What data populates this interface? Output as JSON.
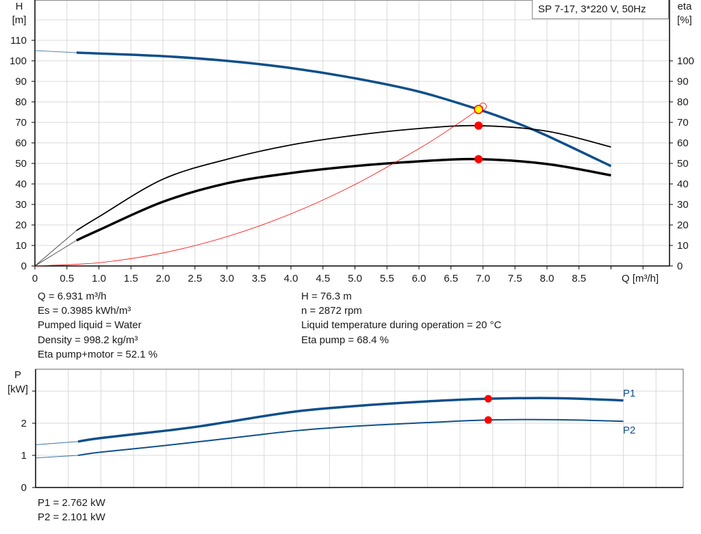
{
  "header": {
    "pump_label": "SP 7-17, 3*220 V, 50Hz"
  },
  "colors": {
    "head": "#0e4f8a",
    "efficiency": "#000000",
    "system": "#ff0000",
    "power": "#0e4f8a",
    "operating_point": "#ff0000",
    "duty_marker": "#ffff00",
    "grid": "#d9d9d9"
  },
  "results": {
    "left": [
      "Q = 6.931 m³/h",
      "Es = 0.3985 kWh/m³",
      "Pumped liquid = Water",
      "Density = 998.2 kg/m³",
      "Eta pump+motor = 52.1 %"
    ],
    "right": [
      "H = 76.3 m",
      "n = 2872 rpm",
      "Liquid temperature during operation = 20 °C",
      "Eta pump = 68.4 %"
    ],
    "power": [
      "P1 = 2.762 kW",
      "P2 = 2.101 kW"
    ]
  },
  "chart_data": [
    {
      "type": "line",
      "xlabel": "Q [m³/h]",
      "ylabel": "H\n[m]",
      "y2label": "eta\n[%]",
      "ylabel_lines": [
        "H",
        "[m]"
      ],
      "y2label_lines": [
        "eta",
        "[%]"
      ],
      "xlim": [
        0,
        9.5
      ],
      "ylim": [
        0,
        129.7
      ],
      "y2lim": [
        0,
        129.7
      ],
      "grid": true,
      "x_ticks": [
        "0",
        "0.5",
        "1.0",
        "1.5",
        "2.0",
        "2.5",
        "3.0",
        "3.5",
        "4.0",
        "4.5",
        "5.0",
        "5.5",
        "6.0",
        "6.5",
        "7.0",
        "7.5",
        "8.0",
        "8.5"
      ],
      "y_ticks": [
        "0",
        "10",
        "20",
        "30",
        "40",
        "50",
        "60",
        "70",
        "80",
        "90",
        "100",
        "110"
      ],
      "y2_ticks": [
        "0",
        "10",
        "20",
        "30",
        "40",
        "50",
        "60",
        "70",
        "80",
        "90",
        "100"
      ],
      "series": [
        {
          "role": "head",
          "axis": "left",
          "extrapolated": {
            "x": [
              0,
              0.65
            ],
            "y": [
              105,
              104
            ]
          },
          "x": [
            0.65,
            1.0,
            2.0,
            3.0,
            4.0,
            5.0,
            6.0,
            6.931,
            7.5,
            8.0,
            9.0
          ],
          "y": [
            104,
            103.6,
            102.3,
            100,
            96.5,
            91.5,
            85,
            76.3,
            70,
            63.5,
            48.7
          ]
        },
        {
          "role": "eta-pump",
          "axis": "right",
          "extrapolated": {
            "x": [
              0,
              0.65
            ],
            "y": [
              0,
              17.3
            ]
          },
          "x": [
            0.65,
            1.0,
            2.0,
            3.0,
            4.0,
            5.0,
            6.0,
            6.931,
            8.0,
            9.0
          ],
          "y": [
            17.3,
            24,
            42.3,
            52,
            59,
            63.7,
            67,
            68.4,
            65.7,
            58
          ]
        },
        {
          "role": "eta-pump-motor",
          "axis": "right",
          "extrapolated": {
            "x": [
              0,
              0.65
            ],
            "y": [
              0,
              12.5
            ]
          },
          "x": [
            0.65,
            1.0,
            2.0,
            3.0,
            4.0,
            5.0,
            6.0,
            6.931,
            8.0,
            9.0
          ],
          "y": [
            12.5,
            17.5,
            31.3,
            40.3,
            45.3,
            48.7,
            51,
            52.1,
            49.7,
            44.2
          ]
        },
        {
          "role": "system-curve",
          "axis": "left",
          "x": [
            0,
            1,
            2,
            3,
            4,
            5,
            6,
            6.5,
            7.0
          ],
          "y": [
            0,
            1.59,
            6.35,
            14.3,
            25.4,
            39.7,
            57.2,
            67.1,
            77.8
          ]
        }
      ],
      "points": [
        {
          "role": "duty-point",
          "x": 6.931,
          "y": 76.3
        },
        {
          "role": "eta-pump-point",
          "x": 6.931,
          "y": 68.4
        },
        {
          "role": "eta-pump-motor-point",
          "x": 6.931,
          "y": 52.1
        }
      ]
    },
    {
      "type": "line",
      "ylabel_lines": [
        "P",
        "[kW]"
      ],
      "xlim": [
        0,
        9.5
      ],
      "ylim": [
        0,
        3.6
      ],
      "grid": true,
      "y_ticks": [
        "0",
        "1",
        "2"
      ],
      "series": [
        {
          "name": "P1",
          "extrapolated": {
            "x": [
              0,
              0.65
            ],
            "y": [
              1.33,
              1.43
            ]
          },
          "x": [
            0.65,
            1.0,
            2.0,
            2.5,
            3.0,
            4.0,
            5.0,
            6.0,
            6.931,
            8.0,
            9.0
          ],
          "y": [
            1.43,
            1.54,
            1.77,
            1.9,
            2.06,
            2.37,
            2.55,
            2.68,
            2.762,
            2.78,
            2.71
          ]
        },
        {
          "name": "P2",
          "extrapolated": {
            "x": [
              0,
              0.65
            ],
            "y": [
              0.92,
              1.0
            ]
          },
          "x": [
            0.65,
            1.0,
            2.0,
            3.0,
            4.0,
            5.0,
            6.0,
            6.931,
            8.0,
            9.0
          ],
          "y": [
            1.0,
            1.1,
            1.31,
            1.54,
            1.77,
            1.92,
            2.02,
            2.101,
            2.11,
            2.06
          ]
        }
      ],
      "points": [
        {
          "role": "p1-point",
          "x": 6.931,
          "y": 2.762
        },
        {
          "role": "p2-point",
          "x": 6.931,
          "y": 2.101
        }
      ]
    }
  ]
}
